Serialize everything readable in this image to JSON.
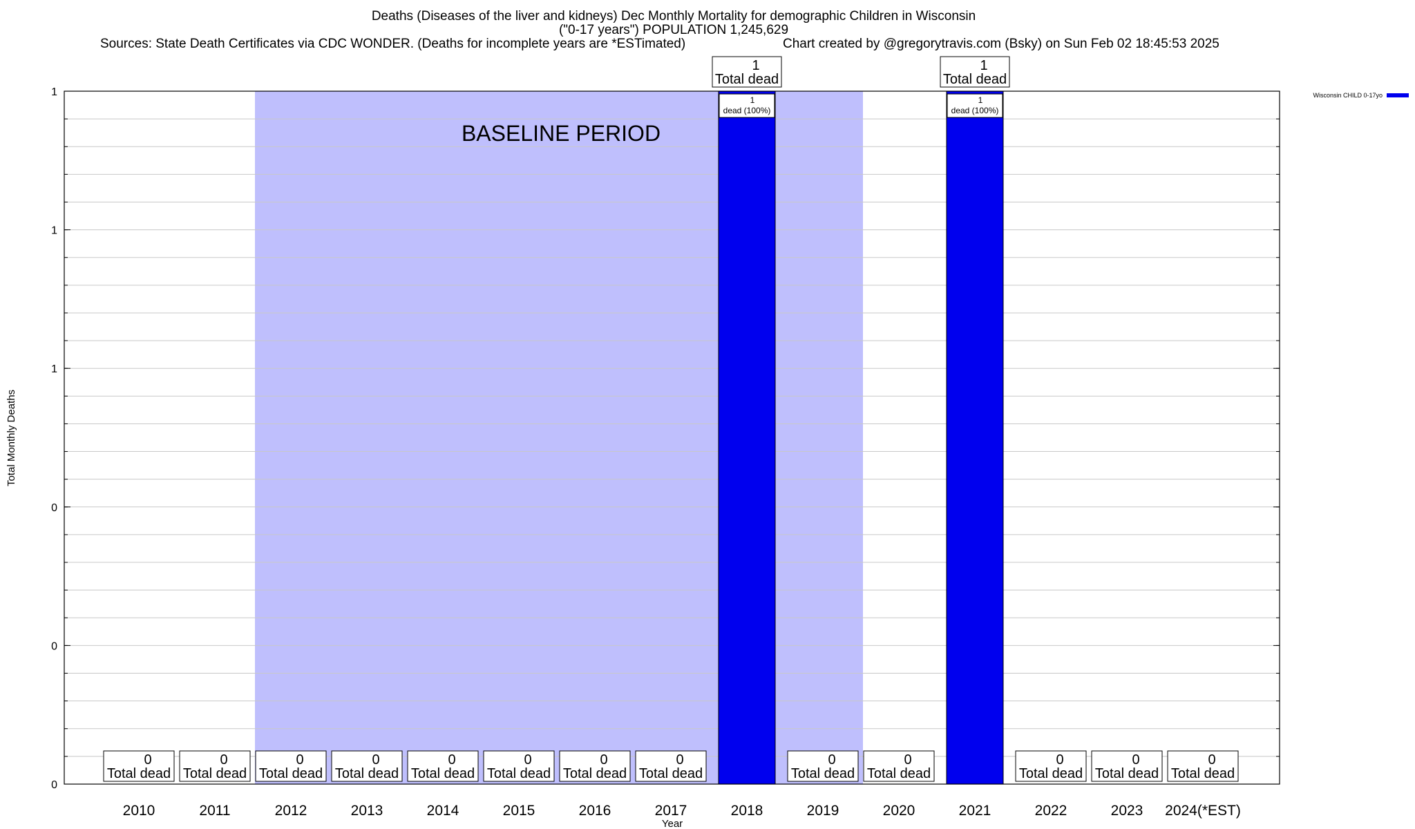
{
  "header": {
    "title_line1": "Deaths (Diseases of the liver and kidneys) Dec Monthly Mortality for demographic Children in Wisconsin",
    "title_line2": "(\"0-17 years\") POPULATION 1,245,629",
    "sources": "Sources: State Death Certificates via CDC WONDER. (Deaths for incomplete years are *ESTimated)",
    "credit": "Chart created by @gregorytravis.com (Bsky) on Sun Feb 02 18:45:53 2025"
  },
  "chart_data": {
    "type": "bar",
    "xlabel": "Year",
    "ylabel": "Total Monthly Deaths",
    "ylim": [
      0,
      1
    ],
    "y_tick_labels": [
      "0",
      "0",
      "0",
      "1",
      "1",
      "1"
    ],
    "categories": [
      "2010",
      "2011",
      "2012",
      "2013",
      "2014",
      "2015",
      "2016",
      "2017",
      "2018",
      "2019",
      "2020",
      "2021",
      "2022",
      "2023",
      "2024(*EST)"
    ],
    "series": [
      {
        "name": "Wisconsin CHILD 0-17yo",
        "color": "#0000ee",
        "values": [
          0,
          0,
          0,
          0,
          0,
          0,
          0,
          0,
          1,
          0,
          0,
          1,
          0,
          0,
          0
        ]
      }
    ],
    "value_label_suffix": "Total dead",
    "bar_inner_labels": [
      "",
      "",
      "",
      "",
      "",
      "",
      "",
      "",
      "1|dead (100%)",
      "",
      "",
      "1|dead (100%)",
      "",
      "",
      ""
    ],
    "baseline": {
      "label": "BASELINE PERIOD",
      "from": "2012",
      "to": "2019",
      "color": "#bfbffd"
    },
    "legend_position": "top-right",
    "grid": true
  }
}
